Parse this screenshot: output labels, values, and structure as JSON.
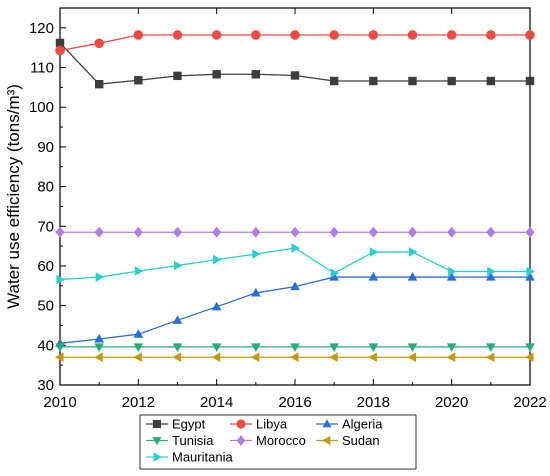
{
  "chart_data": {
    "type": "line",
    "ylabel": "Water use efficiency (tons/m³)",
    "xlabel": "",
    "title": "",
    "xlim": [
      2010,
      2022
    ],
    "ylim": [
      30,
      125
    ],
    "xticks": [
      "2010",
      "2012",
      "2014",
      "2016",
      "2018",
      "2020",
      "2022"
    ],
    "yticks": [
      "30",
      "40",
      "50",
      "60",
      "70",
      "80",
      "90",
      "100",
      "110",
      "120"
    ],
    "legend_position": "bottom-center",
    "grid": false,
    "x": [
      2010,
      2011,
      2012,
      2013,
      2014,
      2015,
      2016,
      2017,
      2018,
      2019,
      2020,
      2021,
      2022
    ],
    "series": [
      {
        "name": "Egypt",
        "marker": "square",
        "color": "#3d3d3d",
        "values": [
          116.2,
          105.8,
          106.8,
          107.9,
          108.3,
          108.3,
          108.0,
          106.6,
          106.6,
          106.6,
          106.6,
          106.6,
          106.6
        ]
      },
      {
        "name": "Libya",
        "marker": "circle",
        "color": "#f04a44",
        "values": [
          114.3,
          116.1,
          118.2,
          118.2,
          118.2,
          118.2,
          118.2,
          118.2,
          118.2,
          118.2,
          118.2,
          118.2,
          118.2
        ]
      },
      {
        "name": "Algeria",
        "marker": "triangle-up",
        "color": "#2b6fd8",
        "values": [
          40.5,
          41.6,
          42.8,
          46.3,
          49.7,
          53.2,
          54.8,
          57.2,
          57.2,
          57.2,
          57.2,
          57.2,
          57.2
        ]
      },
      {
        "name": "Tunisia",
        "marker": "triangle-down",
        "color": "#27ae78",
        "values": [
          39.6,
          39.6,
          39.6,
          39.6,
          39.6,
          39.6,
          39.6,
          39.6,
          39.6,
          39.6,
          39.6,
          39.6,
          39.6
        ]
      },
      {
        "name": "Morocco",
        "marker": "diamond",
        "color": "#b57be5",
        "values": [
          68.5,
          68.5,
          68.5,
          68.5,
          68.5,
          68.5,
          68.5,
          68.5,
          68.5,
          68.5,
          68.5,
          68.5,
          68.5
        ]
      },
      {
        "name": "Sudan",
        "marker": "triangle-left",
        "color": "#c49a14",
        "values": [
          37.0,
          37.0,
          37.0,
          37.0,
          37.0,
          37.0,
          37.0,
          37.0,
          37.0,
          37.0,
          37.0,
          37.0,
          37.0
        ]
      },
      {
        "name": "Mauritania",
        "marker": "triangle-right",
        "color": "#2ad0d0",
        "values": [
          56.6,
          57.2,
          58.7,
          60.1,
          61.6,
          63.0,
          64.5,
          58.2,
          63.5,
          63.5,
          58.6,
          58.6,
          58.6
        ]
      }
    ]
  }
}
